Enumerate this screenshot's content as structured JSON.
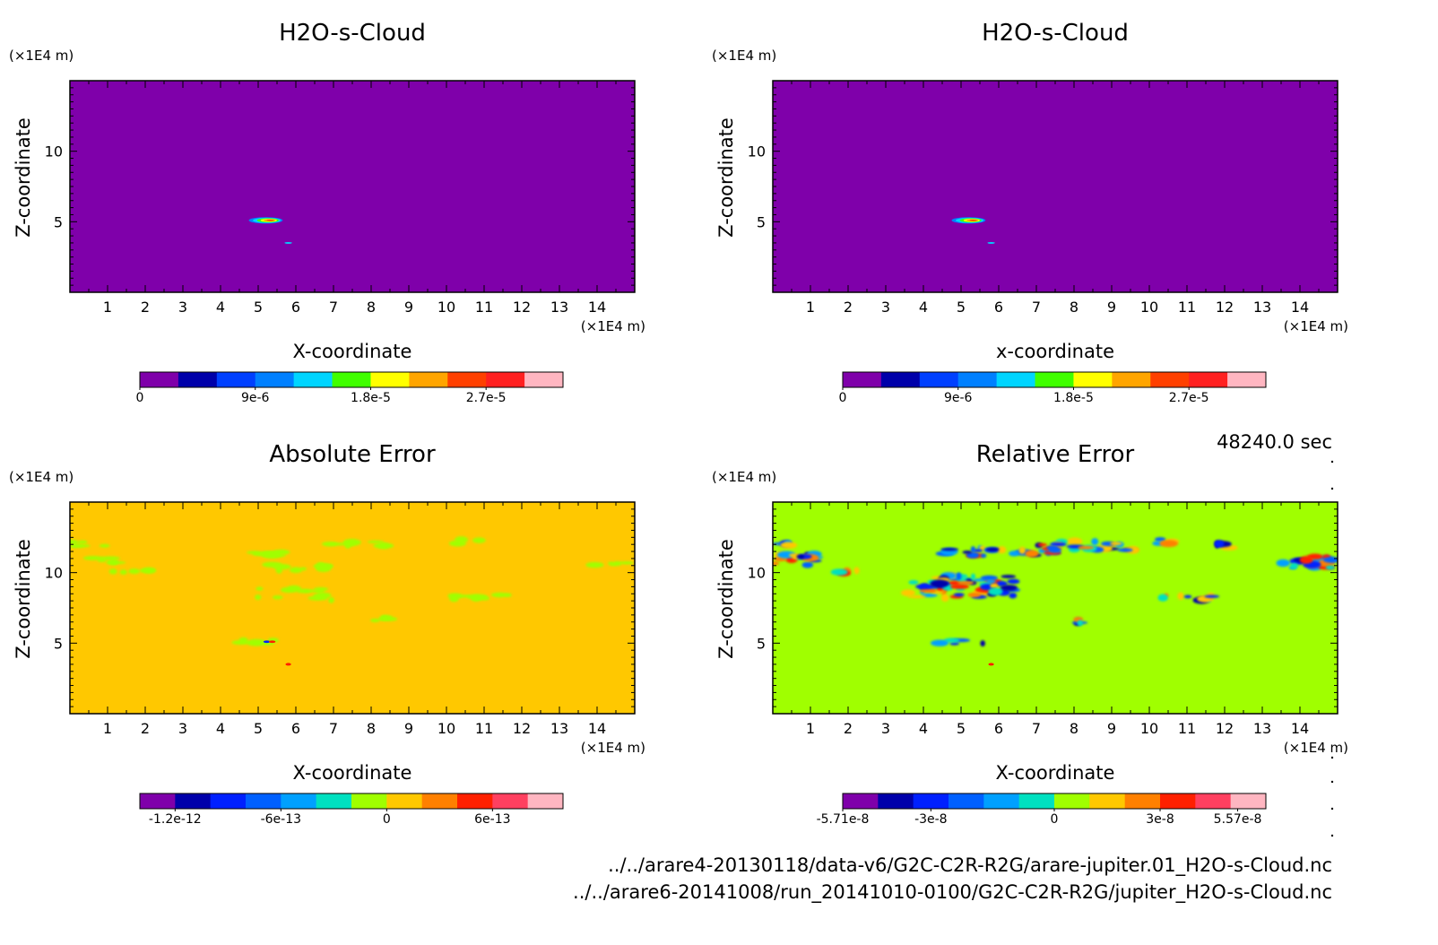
{
  "time_label": "48240.0 sec",
  "file_paths": [
    "../../arare4-20130118/data-v6/G2C-C2R-R2G/arare-jupiter.01_H2O-s-Cloud.nc",
    "../../arare6-20141008/run_20141010-0100/G2C-C2R-R2G/jupiter_H2O-s-Cloud.nc"
  ],
  "chart_data": [
    {
      "type": "heatmap",
      "title": "H2O-s-Cloud",
      "xlabel": "X-coordinate",
      "ylabel": "Z-coordinate",
      "x_unit": "(×1E4 m)",
      "y_unit": "(×1E4 m)",
      "xlim": [
        0,
        15
      ],
      "ylim": [
        0,
        15
      ],
      "x_ticks": [
        1,
        2,
        3,
        4,
        5,
        6,
        7,
        8,
        9,
        10,
        11,
        12,
        13,
        14
      ],
      "y_ticks": [
        5,
        10
      ],
      "background_color": "#7f00aa",
      "colorbar": {
        "colors": [
          "#7f00aa",
          "#0000aa",
          "#0040ff",
          "#0080ff",
          "#00d5ff",
          "#40ff00",
          "#ffff00",
          "#ffa500",
          "#ff4000",
          "#ff2020",
          "#ffb6c1"
        ],
        "tick_labels": [
          "0",
          "9e-6",
          "1.8e-5",
          "2.7e-5"
        ]
      },
      "features": [
        {
          "x": 5.2,
          "z": 5.1,
          "w": 0.9,
          "h": 0.45,
          "level": "max"
        },
        {
          "x": 5.8,
          "z": 3.5,
          "w": 0.2,
          "h": 0.12,
          "level": "low"
        }
      ]
    },
    {
      "type": "heatmap",
      "title": "H2O-s-Cloud",
      "xlabel": "x-coordinate",
      "ylabel": "Z-coordinate",
      "x_unit": "(×1E4 m)",
      "y_unit": "(×1E4 m)",
      "xlim": [
        0,
        15
      ],
      "ylim": [
        0,
        15
      ],
      "x_ticks": [
        1,
        2,
        3,
        4,
        5,
        6,
        7,
        8,
        9,
        10,
        11,
        12,
        13,
        14
      ],
      "y_ticks": [
        5,
        10
      ],
      "background_color": "#7f00aa",
      "colorbar": {
        "colors": [
          "#7f00aa",
          "#0000aa",
          "#0040ff",
          "#0080ff",
          "#00d5ff",
          "#40ff00",
          "#ffff00",
          "#ffa500",
          "#ff4000",
          "#ff2020",
          "#ffb6c1"
        ],
        "tick_labels": [
          "0",
          "9e-6",
          "1.8e-5",
          "2.7e-5"
        ]
      },
      "features": [
        {
          "x": 5.2,
          "z": 5.1,
          "w": 0.9,
          "h": 0.45,
          "level": "max"
        },
        {
          "x": 5.8,
          "z": 3.5,
          "w": 0.2,
          "h": 0.12,
          "level": "low"
        }
      ]
    },
    {
      "type": "heatmap",
      "title": "Absolute Error",
      "xlabel": "X-coordinate",
      "ylabel": "Z-coordinate",
      "x_unit": "(×1E4 m)",
      "y_unit": "(×1E4 m)",
      "xlim": [
        0,
        15
      ],
      "ylim": [
        0,
        15
      ],
      "x_ticks": [
        1,
        2,
        3,
        4,
        5,
        6,
        7,
        8,
        9,
        10,
        11,
        12,
        13,
        14
      ],
      "y_ticks": [
        5,
        10
      ],
      "background_color": "#ffc800",
      "colorbar": {
        "colors": [
          "#7f00aa",
          "#0000aa",
          "#0020ff",
          "#0060ff",
          "#00a0ff",
          "#00e0c0",
          "#a0ff00",
          "#ffc800",
          "#ff8000",
          "#ff2000",
          "#ff4060",
          "#ffb6c1"
        ],
        "tick_labels": [
          "-1.2e-12",
          "-6e-13",
          "0",
          "6e-13"
        ]
      },
      "features": [
        {
          "x": 0.5,
          "z": 12.0,
          "w": 1.2,
          "h": 0.5,
          "level": "neg_small"
        },
        {
          "x": 0.6,
          "z": 10.9,
          "w": 1.5,
          "h": 0.6,
          "level": "neg_small"
        },
        {
          "x": 1.6,
          "z": 10.1,
          "w": 1.2,
          "h": 0.4,
          "level": "neg_small"
        },
        {
          "x": 5.5,
          "z": 11.3,
          "w": 1.8,
          "h": 0.5,
          "level": "neg_small"
        },
        {
          "x": 7.8,
          "z": 12.0,
          "w": 2.2,
          "h": 0.6,
          "level": "neg_small"
        },
        {
          "x": 6.0,
          "z": 10.3,
          "w": 2.2,
          "h": 0.8,
          "level": "neg_small"
        },
        {
          "x": 5.6,
          "z": 8.5,
          "w": 3.2,
          "h": 1.5,
          "level": "neg_small"
        },
        {
          "x": 10.6,
          "z": 12.2,
          "w": 0.8,
          "h": 0.4,
          "level": "neg_small"
        },
        {
          "x": 11.0,
          "z": 8.3,
          "w": 2.0,
          "h": 0.5,
          "level": "neg_small"
        },
        {
          "x": 8.2,
          "z": 6.7,
          "w": 1.2,
          "h": 0.4,
          "level": "neg_small"
        },
        {
          "x": 14.4,
          "z": 10.7,
          "w": 1.3,
          "h": 0.9,
          "level": "neg_small"
        },
        {
          "x": 5.0,
          "z": 5.1,
          "w": 1.2,
          "h": 0.35,
          "level": "neg_small"
        },
        {
          "x": 5.3,
          "z": 5.1,
          "w": 0.3,
          "h": 0.3,
          "level": "extreme"
        },
        {
          "x": 5.8,
          "z": 3.5,
          "w": 0.15,
          "h": 0.1,
          "level": "pos"
        }
      ]
    },
    {
      "type": "heatmap",
      "title": "Relative Error",
      "xlabel": "X-coordinate",
      "ylabel": "Z-coordinate",
      "x_unit": "(×1E4 m)",
      "y_unit": "(×1E4 m)",
      "xlim": [
        0,
        15
      ],
      "ylim": [
        0,
        15
      ],
      "x_ticks": [
        1,
        2,
        3,
        4,
        5,
        6,
        7,
        8,
        9,
        10,
        11,
        12,
        13,
        14
      ],
      "y_ticks": [
        5,
        10
      ],
      "background_color": "#a0ff00",
      "colorbar": {
        "colors": [
          "#7f00aa",
          "#0000aa",
          "#0020ff",
          "#0060ff",
          "#00a0ff",
          "#00e0c0",
          "#a0ff00",
          "#ffc800",
          "#ff8000",
          "#ff2000",
          "#ff4060",
          "#ffb6c1"
        ],
        "tick_labels": [
          "-5.71e-8",
          "-3e-8",
          "0",
          "3e-8",
          "5.57e-8"
        ]
      },
      "features": [
        {
          "x": 0.6,
          "z": 10.9,
          "w": 1.3,
          "h": 1.2,
          "level": "mixed"
        },
        {
          "x": 0.5,
          "z": 12.1,
          "w": 1.0,
          "h": 0.4,
          "level": "mixed"
        },
        {
          "x": 1.8,
          "z": 10.1,
          "w": 1.0,
          "h": 0.4,
          "level": "mixed"
        },
        {
          "x": 6.0,
          "z": 11.5,
          "w": 3.6,
          "h": 0.8,
          "level": "mixed"
        },
        {
          "x": 8.4,
          "z": 11.9,
          "w": 3.0,
          "h": 0.8,
          "level": "mixed"
        },
        {
          "x": 5.0,
          "z": 9.0,
          "w": 3.2,
          "h": 2.0,
          "level": "mixed"
        },
        {
          "x": 10.4,
          "z": 12.2,
          "w": 0.6,
          "h": 0.4,
          "level": "mixed"
        },
        {
          "x": 11.9,
          "z": 11.9,
          "w": 0.6,
          "h": 0.4,
          "level": "mixed"
        },
        {
          "x": 10.9,
          "z": 8.2,
          "w": 1.8,
          "h": 0.5,
          "level": "mixed"
        },
        {
          "x": 7.8,
          "z": 6.6,
          "w": 1.0,
          "h": 0.5,
          "level": "mixed"
        },
        {
          "x": 14.2,
          "z": 10.7,
          "w": 1.6,
          "h": 1.2,
          "level": "mixed"
        },
        {
          "x": 5.0,
          "z": 5.1,
          "w": 1.3,
          "h": 0.45,
          "level": "mixed"
        },
        {
          "x": 5.8,
          "z": 3.5,
          "w": 0.15,
          "h": 0.1,
          "level": "pos"
        }
      ]
    }
  ]
}
